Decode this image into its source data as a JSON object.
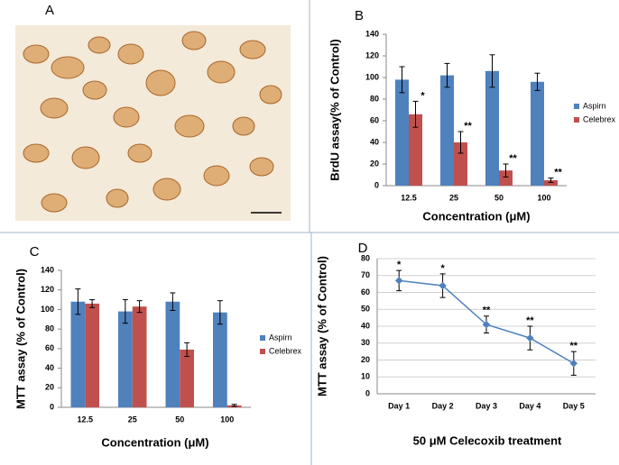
{
  "panel_a": {
    "label": "A"
  },
  "chart_data": [
    {
      "type": "bar",
      "panel": "B",
      "ylabel": "BrdU assay(% of  Control)",
      "xlabel": "Concentration (μM)",
      "categories": [
        "12.5",
        "25",
        "50",
        "100"
      ],
      "series": [
        {
          "name": "Aspirn",
          "color": "#4f81bd",
          "values": [
            98,
            102,
            106,
            96
          ],
          "errors": [
            12,
            11,
            15,
            8
          ]
        },
        {
          "name": "Celebrex",
          "color": "#c0504d",
          "values": [
            66,
            40,
            14,
            5
          ],
          "errors": [
            12,
            10,
            6,
            2
          ],
          "significance": [
            "*",
            "**",
            "**",
            "**"
          ]
        }
      ],
      "ylim": [
        0,
        140
      ],
      "yticks": [
        0,
        20,
        40,
        60,
        80,
        100,
        120,
        140
      ],
      "grid": false,
      "legend": "right"
    },
    {
      "type": "bar",
      "panel": "C",
      "ylabel": "MTT assay (% of  Control)",
      "xlabel": "Concentration (μM)",
      "categories": [
        "12.5",
        "25",
        "50",
        "100"
      ],
      "series": [
        {
          "name": "Aspirn",
          "color": "#4f81bd",
          "values": [
            108,
            98,
            108,
            97
          ],
          "errors": [
            13,
            12,
            9,
            12
          ]
        },
        {
          "name": "Celebrex",
          "color": "#c0504d",
          "values": [
            106,
            103,
            59,
            2
          ],
          "errors": [
            4,
            6,
            7,
            1
          ]
        }
      ],
      "ylim": [
        0,
        140
      ],
      "yticks": [
        0,
        20,
        40,
        60,
        80,
        100,
        120,
        140
      ],
      "grid": false,
      "legend": "right"
    },
    {
      "type": "line",
      "panel": "D",
      "ylabel": "MTT assay (% of  Control)",
      "xlabel": "50 μM Celecoxib treatment",
      "categories": [
        "Day 1",
        "Day 2",
        "Day 3",
        "Day 4",
        "Day 5"
      ],
      "series": [
        {
          "name": "Celecoxib",
          "color": "#4f81bd",
          "values": [
            67,
            64,
            41,
            33,
            18
          ],
          "errors": [
            6,
            7,
            5,
            7,
            7
          ],
          "significance": [
            "*",
            "*",
            "**",
            "**",
            "**"
          ]
        }
      ],
      "ylim": [
        0,
        80
      ],
      "yticks": [
        0,
        10,
        20,
        30,
        40,
        50,
        60,
        70,
        80
      ],
      "grid": true
    }
  ]
}
